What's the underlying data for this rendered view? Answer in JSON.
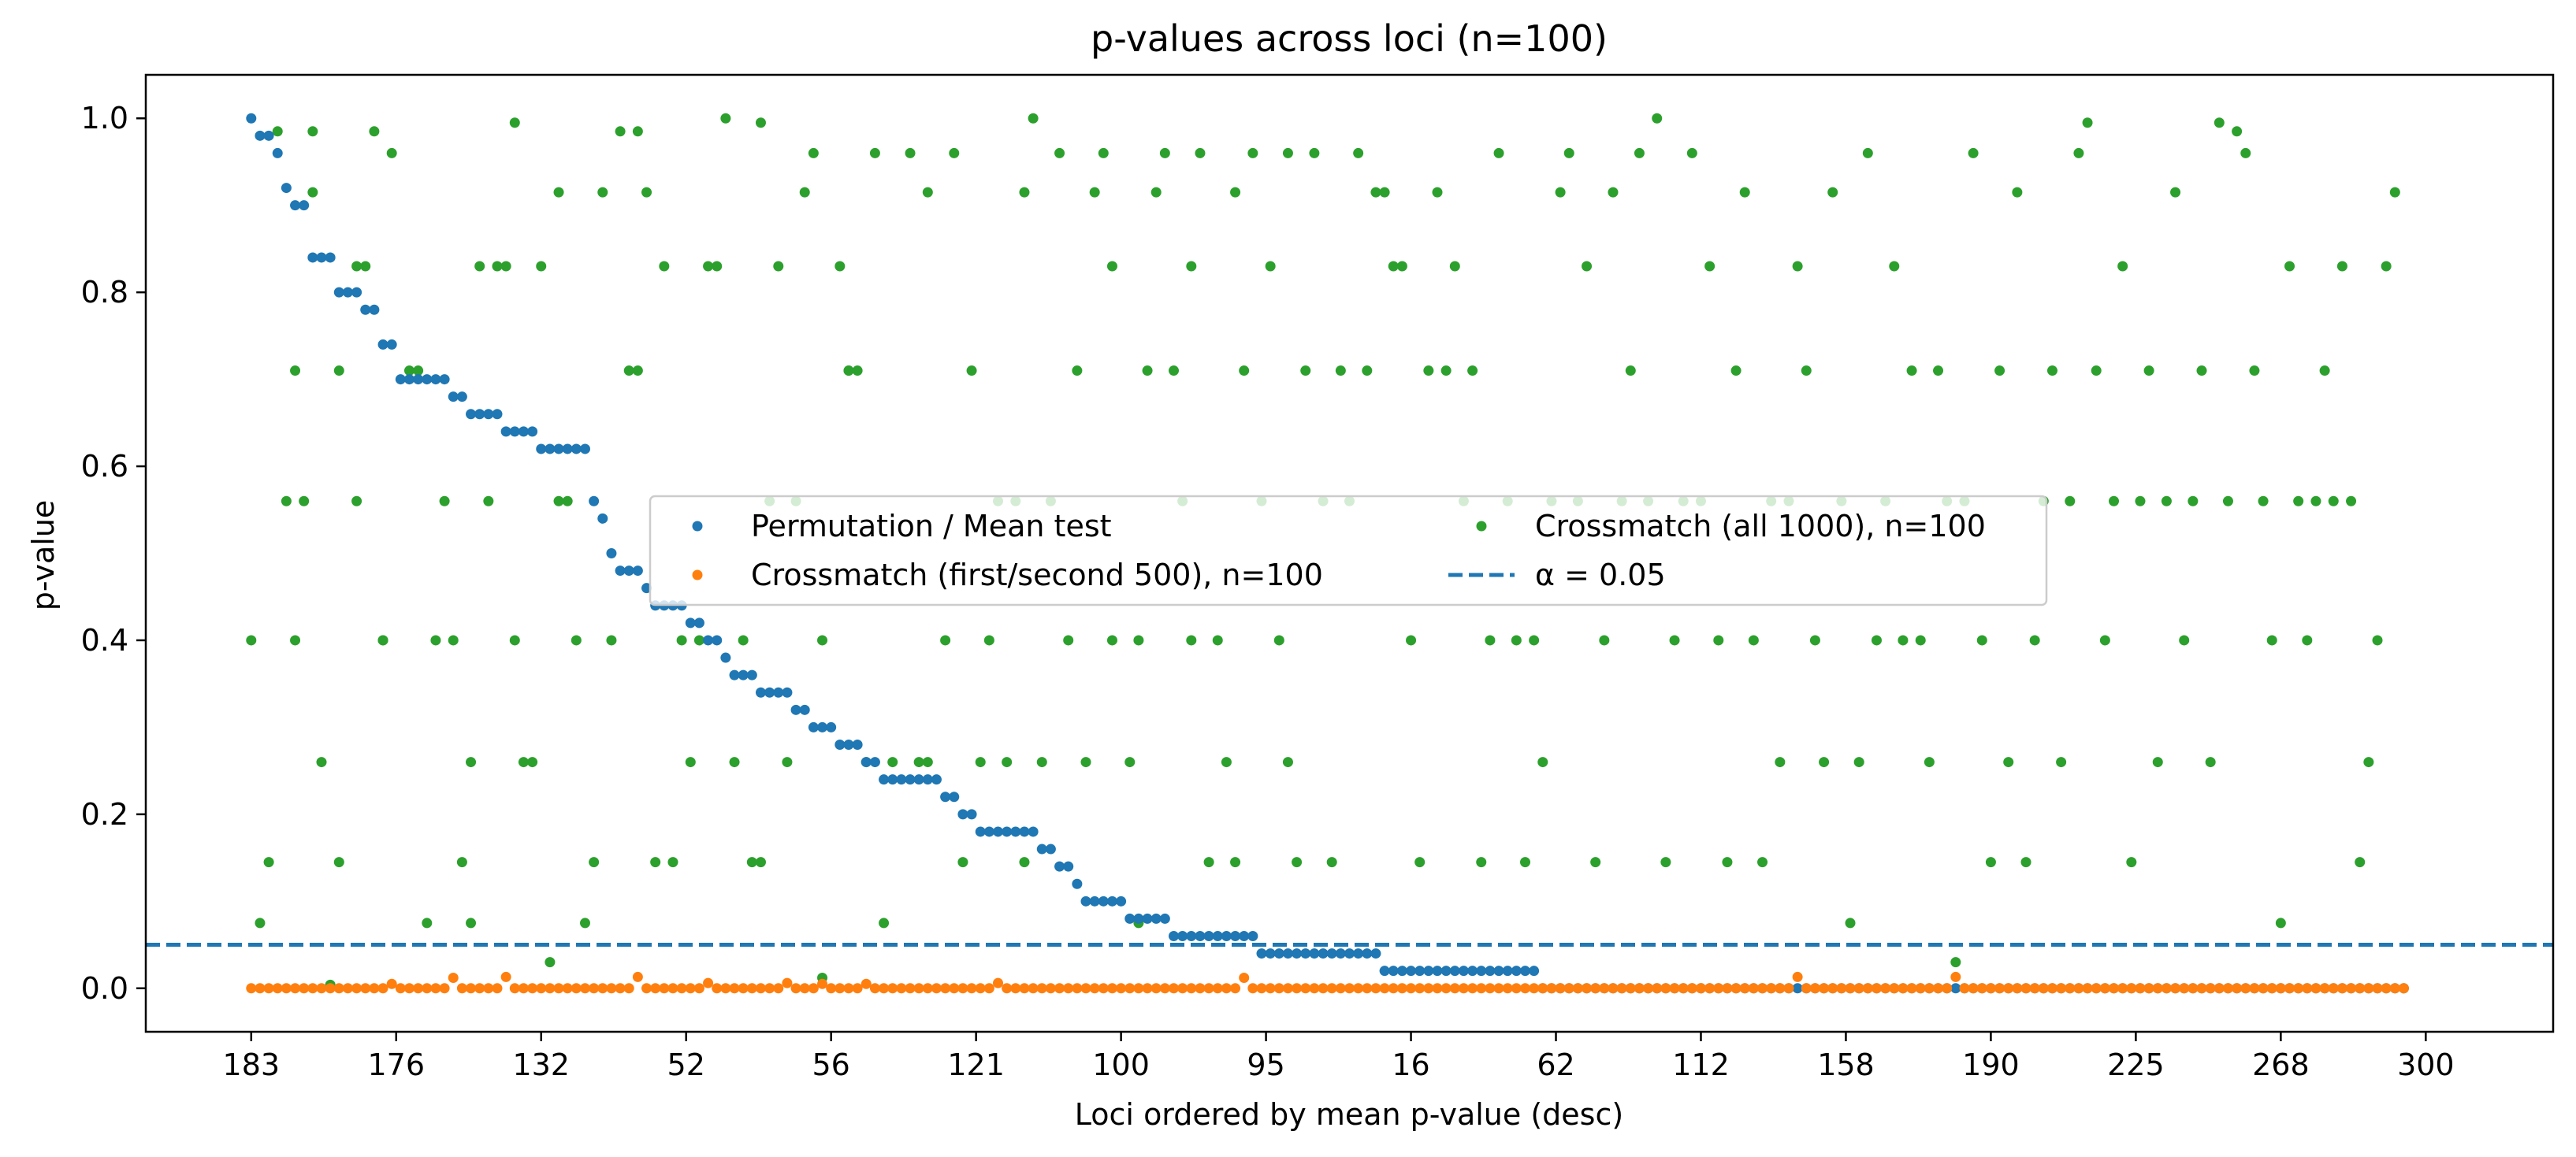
{
  "chart_data": {
    "type": "scatter",
    "title": "p-values across loci (n=100)",
    "xlabel": "Loci ordered by mean p-value (desc)",
    "ylabel": "p-value",
    "ylim": [
      -0.05,
      1.05
    ],
    "xlim": [
      -12,
      262
    ],
    "yticks": [
      0.0,
      0.2,
      0.4,
      0.6,
      0.8,
      1.0
    ],
    "ytick_labels": [
      "0.0",
      "0.2",
      "0.4",
      "0.6",
      "0.8",
      "1.0"
    ],
    "xticks": [
      0,
      16.5,
      33,
      49.5,
      66,
      82.5,
      99,
      115.5,
      132,
      148.5,
      165,
      181.5,
      198,
      214.5,
      231,
      247.5
    ],
    "xtick_labels": [
      "183",
      "176",
      "132",
      "52",
      "56",
      "121",
      "100",
      "95",
      "16",
      "62",
      "112",
      "158",
      "190",
      "225",
      "268",
      "300"
    ],
    "grid": false,
    "legend_position": "center",
    "threshold": {
      "label": "α = 0.05",
      "value": 0.05,
      "color": "#1f77b4",
      "style": "dashed"
    },
    "series": [
      {
        "name": "Permutation / Mean test",
        "color": "#1f77b4",
        "x_start": 0,
        "values": [
          1.0,
          0.98,
          0.98,
          0.96,
          0.92,
          0.9,
          0.9,
          0.84,
          0.84,
          0.84,
          0.8,
          0.8,
          0.8,
          0.78,
          0.78,
          0.74,
          0.74,
          0.7,
          0.7,
          0.7,
          0.7,
          0.7,
          0.7,
          0.68,
          0.68,
          0.66,
          0.66,
          0.66,
          0.66,
          0.64,
          0.64,
          0.64,
          0.64,
          0.62,
          0.62,
          0.62,
          0.62,
          0.62,
          0.62,
          0.56,
          0.54,
          0.5,
          0.48,
          0.48,
          0.48,
          0.46,
          0.44,
          0.44,
          0.44,
          0.44,
          0.42,
          0.42,
          0.4,
          0.4,
          0.38,
          0.36,
          0.36,
          0.36,
          0.34,
          0.34,
          0.34,
          0.34,
          0.32,
          0.32,
          0.3,
          0.3,
          0.3,
          0.28,
          0.28,
          0.28,
          0.26,
          0.26,
          0.24,
          0.24,
          0.24,
          0.24,
          0.24,
          0.24,
          0.24,
          0.22,
          0.22,
          0.2,
          0.2,
          0.18,
          0.18,
          0.18,
          0.18,
          0.18,
          0.18,
          0.18,
          0.16,
          0.16,
          0.14,
          0.14,
          0.12,
          0.1,
          0.1,
          0.1,
          0.1,
          0.1,
          0.08,
          0.08,
          0.08,
          0.08,
          0.08,
          0.06,
          0.06,
          0.06,
          0.06,
          0.06,
          0.06,
          0.06,
          0.06,
          0.06,
          0.06,
          0.04,
          0.04,
          0.04,
          0.04,
          0.04,
          0.04,
          0.04,
          0.04,
          0.04,
          0.04,
          0.04,
          0.04,
          0.04,
          0.04,
          0.02,
          0.02,
          0.02,
          0.02,
          0.02,
          0.02,
          0.02,
          0.02,
          0.02,
          0.02,
          0.02,
          0.02,
          0.02,
          0.02,
          0.02,
          0.02,
          0.02,
          0.02
        ],
        "values_after_end": 0.0
      },
      {
        "name": "Crossmatch (first/second 500), n=100",
        "color": "#ff7f0e",
        "baseline": 0.0,
        "x_range": [
          0,
          245
        ],
        "outliers": [
          [
            16,
            0.005
          ],
          [
            23,
            0.012
          ],
          [
            29,
            0.013
          ],
          [
            44,
            0.013
          ],
          [
            52,
            0.006
          ],
          [
            61,
            0.006
          ],
          [
            65,
            0.005
          ],
          [
            70,
            0.005
          ],
          [
            85,
            0.006
          ],
          [
            113,
            0.012
          ],
          [
            176,
            0.013
          ],
          [
            194,
            0.013
          ]
        ]
      },
      {
        "name": "Crossmatch (all 1000), n=100",
        "color": "#2ca02c",
        "points": [
          [
            0,
            0.4
          ],
          [
            1,
            0.075
          ],
          [
            2,
            0.145
          ],
          [
            3,
            0.985
          ],
          [
            4,
            0.56
          ],
          [
            5,
            0.71
          ],
          [
            5,
            0.4
          ],
          [
            6,
            0.56
          ],
          [
            7,
            0.915
          ],
          [
            7,
            0.985
          ],
          [
            8,
            0.26
          ],
          [
            9,
            0.004
          ],
          [
            10,
            0.71
          ],
          [
            10,
            0.145
          ],
          [
            12,
            0.56
          ],
          [
            12,
            0.83
          ],
          [
            13,
            0.83
          ],
          [
            14,
            0.985
          ],
          [
            15,
            0.4
          ],
          [
            15,
            0.4
          ],
          [
            16,
            0.96
          ],
          [
            18,
            0.71
          ],
          [
            19,
            0.71
          ],
          [
            20,
            0.075
          ],
          [
            21,
            0.4
          ],
          [
            22,
            0.56
          ],
          [
            23,
            0.4
          ],
          [
            24,
            0.145
          ],
          [
            25,
            0.075
          ],
          [
            25,
            0.26
          ],
          [
            26,
            0.83
          ],
          [
            27,
            0.56
          ],
          [
            28,
            0.83
          ],
          [
            29,
            0.83
          ],
          [
            30,
            0.4
          ],
          [
            30,
            0.995
          ],
          [
            31,
            0.26
          ],
          [
            32,
            0.26
          ],
          [
            33,
            0.83
          ],
          [
            34,
            0.03
          ],
          [
            35,
            0.56
          ],
          [
            35,
            0.915
          ],
          [
            36,
            0.56
          ],
          [
            37,
            0.4
          ],
          [
            38,
            0.075
          ],
          [
            39,
            0.145
          ],
          [
            40,
            0.915
          ],
          [
            41,
            0.4
          ],
          [
            42,
            0.985
          ],
          [
            43,
            0.71
          ],
          [
            44,
            0.985
          ],
          [
            44,
            0.71
          ],
          [
            45,
            0.915
          ],
          [
            46,
            0.145
          ],
          [
            47,
            0.83
          ],
          [
            48,
            0.145
          ],
          [
            49,
            0.4
          ],
          [
            50,
            0.26
          ],
          [
            51,
            0.4
          ],
          [
            52,
            0.83
          ],
          [
            53,
            0.83
          ],
          [
            54,
            1.0
          ],
          [
            55,
            0.26
          ],
          [
            56,
            0.4
          ],
          [
            57,
            0.145
          ],
          [
            58,
            0.145
          ],
          [
            58,
            0.995
          ],
          [
            59,
            0.56
          ],
          [
            60,
            0.83
          ],
          [
            61,
            0.26
          ],
          [
            62,
            0.56
          ],
          [
            63,
            0.915
          ],
          [
            64,
            0.96
          ],
          [
            65,
            0.4
          ],
          [
            65,
            0.012
          ],
          [
            67,
            0.83
          ],
          [
            68,
            0.71
          ],
          [
            68,
            0.71
          ],
          [
            69,
            0.71
          ],
          [
            70,
            0.26
          ],
          [
            71,
            0.96
          ],
          [
            72,
            0.075
          ],
          [
            73,
            0.26
          ],
          [
            75,
            0.96
          ],
          [
            76,
            0.26
          ],
          [
            77,
            0.915
          ],
          [
            77,
            0.26
          ],
          [
            79,
            0.4
          ],
          [
            80,
            0.96
          ],
          [
            81,
            0.145
          ],
          [
            82,
            0.71
          ],
          [
            83,
            0.26
          ],
          [
            84,
            0.4
          ],
          [
            85,
            0.56
          ],
          [
            86,
            0.26
          ],
          [
            87,
            0.56
          ],
          [
            88,
            0.915
          ],
          [
            88,
            0.145
          ],
          [
            89,
            1.0
          ],
          [
            90,
            0.26
          ],
          [
            91,
            0.56
          ],
          [
            92,
            0.96
          ],
          [
            93,
            0.4
          ],
          [
            94,
            0.71
          ],
          [
            95,
            0.26
          ],
          [
            96,
            0.915
          ],
          [
            97,
            0.96
          ],
          [
            98,
            0.83
          ],
          [
            98,
            0.4
          ],
          [
            100,
            0.26
          ],
          [
            101,
            0.4
          ],
          [
            101,
            0.075
          ],
          [
            102,
            0.71
          ],
          [
            103,
            0.915
          ],
          [
            104,
            0.96
          ],
          [
            105,
            0.71
          ],
          [
            106,
            0.56
          ],
          [
            107,
            0.83
          ],
          [
            107,
            0.4
          ],
          [
            108,
            0.96
          ],
          [
            109,
            0.145
          ],
          [
            110,
            0.4
          ],
          [
            111,
            0.26
          ],
          [
            112,
            0.915
          ],
          [
            112,
            0.145
          ],
          [
            113,
            0.71
          ],
          [
            114,
            0.96
          ],
          [
            115,
            0.56
          ],
          [
            116,
            0.83
          ],
          [
            117,
            0.4
          ],
          [
            118,
            0.26
          ],
          [
            118,
            0.96
          ],
          [
            119,
            0.145
          ],
          [
            120,
            0.71
          ],
          [
            121,
            0.96
          ],
          [
            122,
            0.56
          ],
          [
            123,
            0.145
          ],
          [
            124,
            0.71
          ],
          [
            125,
            0.56
          ],
          [
            126,
            0.96
          ],
          [
            127,
            0.71
          ],
          [
            128,
            0.915
          ],
          [
            129,
            0.915
          ],
          [
            130,
            0.83
          ],
          [
            131,
            0.83
          ],
          [
            132,
            0.4
          ],
          [
            133,
            0.145
          ],
          [
            134,
            0.71
          ],
          [
            135,
            0.915
          ],
          [
            136,
            0.71
          ],
          [
            137,
            0.83
          ],
          [
            138,
            0.56
          ],
          [
            139,
            0.71
          ],
          [
            140,
            0.145
          ],
          [
            141,
            0.4
          ],
          [
            142,
            0.96
          ],
          [
            143,
            0.56
          ],
          [
            144,
            0.4
          ],
          [
            145,
            0.145
          ],
          [
            146,
            0.4
          ],
          [
            147,
            0.26
          ],
          [
            148,
            0.56
          ],
          [
            149,
            0.915
          ],
          [
            150,
            0.96
          ],
          [
            151,
            0.56
          ],
          [
            152,
            0.83
          ],
          [
            153,
            0.145
          ],
          [
            154,
            0.4
          ],
          [
            155,
            0.915
          ],
          [
            156,
            0.56
          ],
          [
            157,
            0.71
          ],
          [
            158,
            0.96
          ],
          [
            159,
            0.56
          ],
          [
            160,
            1.0
          ],
          [
            161,
            0.145
          ],
          [
            162,
            0.4
          ],
          [
            163,
            0.56
          ],
          [
            164,
            0.96
          ],
          [
            165,
            0.56
          ],
          [
            166,
            0.83
          ],
          [
            167,
            0.4
          ],
          [
            168,
            0.145
          ],
          [
            169,
            0.71
          ],
          [
            170,
            0.915
          ],
          [
            171,
            0.4
          ],
          [
            172,
            0.145
          ],
          [
            173,
            0.56
          ],
          [
            174,
            0.26
          ],
          [
            175,
            0.56
          ],
          [
            176,
            0.83
          ],
          [
            177,
            0.71
          ],
          [
            178,
            0.4
          ],
          [
            179,
            0.26
          ],
          [
            180,
            0.915
          ],
          [
            181,
            0.56
          ],
          [
            182,
            0.075
          ],
          [
            183,
            0.26
          ],
          [
            184,
            0.96
          ],
          [
            185,
            0.4
          ],
          [
            186,
            0.56
          ],
          [
            187,
            0.83
          ],
          [
            188,
            0.4
          ],
          [
            189,
            0.71
          ],
          [
            190,
            0.4
          ],
          [
            191,
            0.26
          ],
          [
            192,
            0.71
          ],
          [
            193,
            0.56
          ],
          [
            194,
            0.03
          ],
          [
            195,
            0.56
          ],
          [
            196,
            0.96
          ],
          [
            197,
            0.4
          ],
          [
            198,
            0.145
          ],
          [
            199,
            0.71
          ],
          [
            200,
            0.26
          ],
          [
            201,
            0.915
          ],
          [
            202,
            0.145
          ],
          [
            203,
            0.4
          ],
          [
            204,
            0.56
          ],
          [
            205,
            0.71
          ],
          [
            206,
            0.26
          ],
          [
            207,
            0.56
          ],
          [
            208,
            0.96
          ],
          [
            209,
            0.995
          ],
          [
            210,
            0.71
          ],
          [
            211,
            0.4
          ],
          [
            212,
            0.56
          ],
          [
            213,
            0.83
          ],
          [
            214,
            0.145
          ],
          [
            215,
            0.56
          ],
          [
            216,
            0.71
          ],
          [
            217,
            0.26
          ],
          [
            218,
            0.56
          ],
          [
            219,
            0.915
          ],
          [
            220,
            0.4
          ],
          [
            221,
            0.56
          ],
          [
            222,
            0.71
          ],
          [
            223,
            0.26
          ],
          [
            224,
            0.995
          ],
          [
            225,
            0.56
          ],
          [
            226,
            0.985
          ],
          [
            227,
            0.96
          ],
          [
            228,
            0.71
          ],
          [
            229,
            0.56
          ],
          [
            230,
            0.4
          ],
          [
            231,
            0.075
          ],
          [
            232,
            0.83
          ],
          [
            233,
            0.56
          ],
          [
            234,
            0.4
          ],
          [
            235,
            0.56
          ],
          [
            236,
            0.71
          ],
          [
            237,
            0.56
          ],
          [
            238,
            0.83
          ],
          [
            239,
            0.56
          ],
          [
            240,
            0.145
          ],
          [
            241,
            0.26
          ],
          [
            242,
            0.4
          ],
          [
            243,
            0.83
          ],
          [
            244,
            0.915
          ]
        ]
      }
    ]
  }
}
